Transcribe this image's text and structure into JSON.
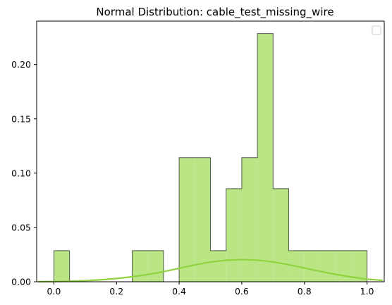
{
  "chart_data": {
    "type": "bar",
    "title": "Normal Distribution: cable_test_missing_wire",
    "xlabel": "",
    "ylabel": "",
    "xlim": [
      -0.055,
      1.055
    ],
    "ylim": [
      0,
      0.24
    ],
    "xticks": [
      0.0,
      0.2,
      0.4,
      0.6,
      0.8,
      1.0
    ],
    "xtick_labels": [
      "0.0",
      "0.2",
      "0.4",
      "0.6",
      "0.8",
      "1.0"
    ],
    "yticks": [
      0.0,
      0.05,
      0.1,
      0.15,
      0.2
    ],
    "ytick_labels": [
      "0.00",
      "0.05",
      "0.10",
      "0.15",
      "0.20"
    ],
    "grid": false,
    "legend": "upper right, empty",
    "bin_width": 0.05,
    "histogram": {
      "bin_edges": [
        0.0,
        0.05,
        0.1,
        0.15,
        0.2,
        0.25,
        0.3,
        0.35,
        0.4,
        0.45,
        0.5,
        0.55,
        0.6,
        0.65,
        0.7,
        0.75,
        0.8,
        0.85,
        0.9,
        0.95,
        1.0
      ],
      "values": [
        0.0286,
        0,
        0,
        0,
        0,
        0.0286,
        0.0286,
        0,
        0.1143,
        0.1143,
        0.0286,
        0.0857,
        0.1143,
        0.2286,
        0.0857,
        0.0286,
        0.0286,
        0.0286,
        0.0286,
        0.0286
      ],
      "fill_color": "#b9e585",
      "edge_color": "#4f5a4a"
    },
    "kde_curve": {
      "color": "#8fd33f",
      "x": [
        -0.05,
        0.0,
        0.05,
        0.1,
        0.15,
        0.2,
        0.25,
        0.3,
        0.35,
        0.4,
        0.45,
        0.5,
        0.55,
        0.6,
        0.65,
        0.7,
        0.75,
        0.8,
        0.85,
        0.9,
        0.95,
        1.0,
        1.05
      ],
      "y": [
        0.0001,
        0.0002,
        0.0005,
        0.001,
        0.0018,
        0.003,
        0.0046,
        0.0067,
        0.0093,
        0.0124,
        0.0155,
        0.0182,
        0.0198,
        0.0204,
        0.0199,
        0.0182,
        0.0157,
        0.0127,
        0.0096,
        0.0068,
        0.0043,
        0.0024,
        0.0012
      ]
    }
  }
}
